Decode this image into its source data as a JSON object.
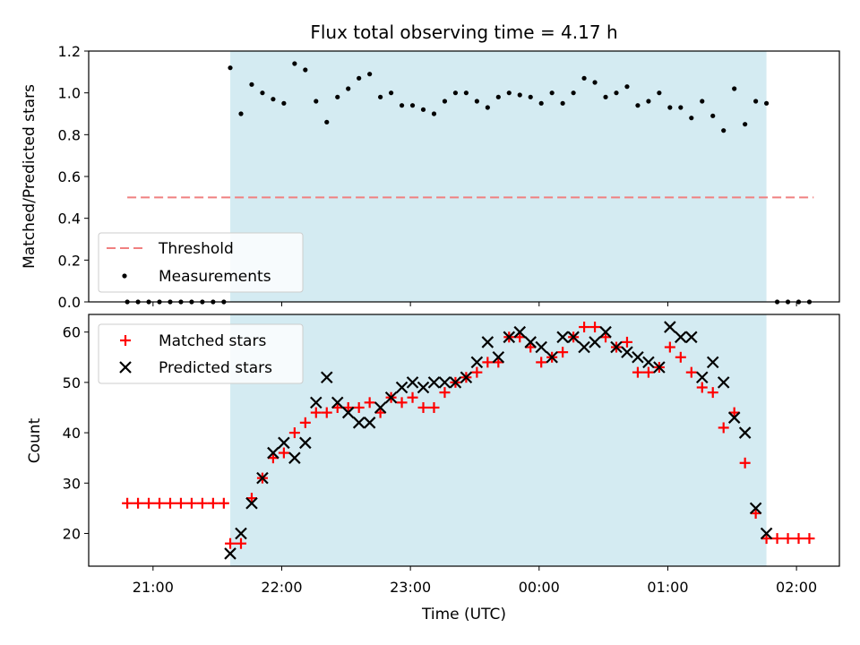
{
  "chart_data": [
    {
      "type": "scatter",
      "title": "Flux total observing time = 4.17 h",
      "xlabel": "",
      "ylabel": "Matched/Predicted stars",
      "xlim": [
        "20:30",
        "02:20"
      ],
      "ylim": [
        0,
        1.2
      ],
      "yticks": [
        "0.0",
        "0.2",
        "0.4",
        "0.6",
        "0.8",
        "1.0",
        "1.2"
      ],
      "shaded_span": {
        "start": "21:36",
        "end": "01:46",
        "color": "#add8e6"
      },
      "legend": {
        "placement": "lower-left"
      },
      "threshold": {
        "name": "Threshold",
        "value": 0.5,
        "x_start": "20:48",
        "x_end": "02:08",
        "color": "#f08080",
        "style": "dashed"
      },
      "series": [
        {
          "name": "Measurements",
          "color": "#000000",
          "marker": "dot",
          "x": [
            "20:48",
            "20:53",
            "20:58",
            "21:03",
            "21:08",
            "21:13",
            "21:18",
            "21:23",
            "21:28",
            "21:33",
            "21:36",
            "21:41",
            "21:46",
            "21:51",
            "21:56",
            "22:01",
            "22:06",
            "22:11",
            "22:16",
            "22:21",
            "22:26",
            "22:31",
            "22:36",
            "22:41",
            "22:46",
            "22:51",
            "22:56",
            "23:01",
            "23:06",
            "23:11",
            "23:16",
            "23:21",
            "23:26",
            "23:31",
            "23:36",
            "23:41",
            "23:46",
            "23:51",
            "23:56",
            "00:01",
            "00:06",
            "00:11",
            "00:16",
            "00:21",
            "00:26",
            "00:31",
            "00:36",
            "00:41",
            "00:46",
            "00:51",
            "00:56",
            "01:01",
            "01:06",
            "01:11",
            "01:16",
            "01:21",
            "01:26",
            "01:31",
            "01:36",
            "01:41",
            "01:46",
            "01:51",
            "01:56",
            "02:01",
            "02:06"
          ],
          "y": [
            0,
            0,
            0,
            0,
            0,
            0,
            0,
            0,
            0,
            0,
            1.12,
            0.9,
            1.04,
            1.0,
            0.97,
            0.95,
            1.14,
            1.11,
            0.96,
            0.86,
            0.98,
            1.02,
            1.07,
            1.09,
            0.98,
            1.0,
            0.94,
            0.94,
            0.92,
            0.9,
            0.96,
            1.0,
            1.0,
            0.96,
            0.93,
            0.98,
            1.0,
            0.99,
            0.98,
            0.95,
            1.0,
            0.95,
            1.0,
            1.07,
            1.05,
            0.98,
            1.0,
            1.03,
            0.94,
            0.96,
            1.0,
            0.93,
            0.93,
            0.88,
            0.96,
            0.89,
            0.82,
            1.02,
            0.85,
            0.96,
            0.95,
            0,
            0,
            0,
            0
          ]
        }
      ]
    },
    {
      "type": "scatter",
      "title": "",
      "xlabel": "Time (UTC)",
      "ylabel": "Count",
      "xlim": [
        "20:30",
        "02:20"
      ],
      "ylim": [
        13.5,
        63.5
      ],
      "yticks": [
        "20",
        "30",
        "40",
        "50",
        "60"
      ],
      "xticks": [
        "21:00",
        "22:00",
        "23:00",
        "00:00",
        "01:00",
        "02:00"
      ],
      "shaded_span": {
        "start": "21:36",
        "end": "01:46",
        "color": "#add8e6"
      },
      "legend": {
        "placement": "upper-left"
      },
      "series": [
        {
          "name": "Matched stars",
          "color": "#ff0000",
          "marker": "plus",
          "x": [
            "20:48",
            "20:53",
            "20:58",
            "21:03",
            "21:08",
            "21:13",
            "21:18",
            "21:23",
            "21:28",
            "21:33",
            "21:36",
            "21:41",
            "21:46",
            "21:51",
            "21:56",
            "22:01",
            "22:06",
            "22:11",
            "22:16",
            "22:21",
            "22:26",
            "22:31",
            "22:36",
            "22:41",
            "22:46",
            "22:51",
            "22:56",
            "23:01",
            "23:06",
            "23:11",
            "23:16",
            "23:21",
            "23:26",
            "23:31",
            "23:36",
            "23:41",
            "23:46",
            "23:51",
            "23:56",
            "00:01",
            "00:06",
            "00:11",
            "00:16",
            "00:21",
            "00:26",
            "00:31",
            "00:36",
            "00:41",
            "00:46",
            "00:51",
            "00:56",
            "01:01",
            "01:06",
            "01:11",
            "01:16",
            "01:21",
            "01:26",
            "01:31",
            "01:36",
            "01:41",
            "01:46",
            "01:51",
            "01:56",
            "02:01",
            "02:06"
          ],
          "y": [
            26,
            26,
            26,
            26,
            26,
            26,
            26,
            26,
            26,
            26,
            18,
            18,
            27,
            31,
            35,
            36,
            40,
            42,
            44,
            44,
            45,
            45,
            45,
            46,
            44,
            47,
            46,
            47,
            45,
            45,
            48,
            50,
            51,
            52,
            54,
            54,
            59,
            59,
            57,
            54,
            55,
            56,
            59,
            61,
            61,
            59,
            57,
            58,
            52,
            52,
            53,
            57,
            55,
            52,
            49,
            48,
            41,
            44,
            34,
            24,
            19,
            19,
            19,
            19,
            19
          ]
        },
        {
          "name": "Predicted stars",
          "color": "#000000",
          "marker": "x",
          "x": [
            "21:36",
            "21:41",
            "21:46",
            "21:51",
            "21:56",
            "22:01",
            "22:06",
            "22:11",
            "22:16",
            "22:21",
            "22:26",
            "22:31",
            "22:36",
            "22:41",
            "22:46",
            "22:51",
            "22:56",
            "23:01",
            "23:06",
            "23:11",
            "23:16",
            "23:21",
            "23:26",
            "23:31",
            "23:36",
            "23:41",
            "23:46",
            "23:51",
            "23:56",
            "00:01",
            "00:06",
            "00:11",
            "00:16",
            "00:21",
            "00:26",
            "00:31",
            "00:36",
            "00:41",
            "00:46",
            "00:51",
            "00:56",
            "01:01",
            "01:06",
            "01:11",
            "01:16",
            "01:21",
            "01:26",
            "01:31",
            "01:36",
            "01:41",
            "01:46"
          ],
          "y": [
            16,
            20,
            26,
            31,
            36,
            38,
            35,
            38,
            46,
            51,
            46,
            44,
            42,
            42,
            45,
            47,
            49,
            50,
            49,
            50,
            50,
            50,
            51,
            54,
            58,
            55,
            59,
            60,
            58,
            57,
            55,
            59,
            59,
            57,
            58,
            60,
            57,
            56,
            55,
            54,
            53,
            61,
            59,
            59,
            51,
            54,
            50,
            43,
            40,
            25,
            20
          ]
        }
      ]
    }
  ]
}
